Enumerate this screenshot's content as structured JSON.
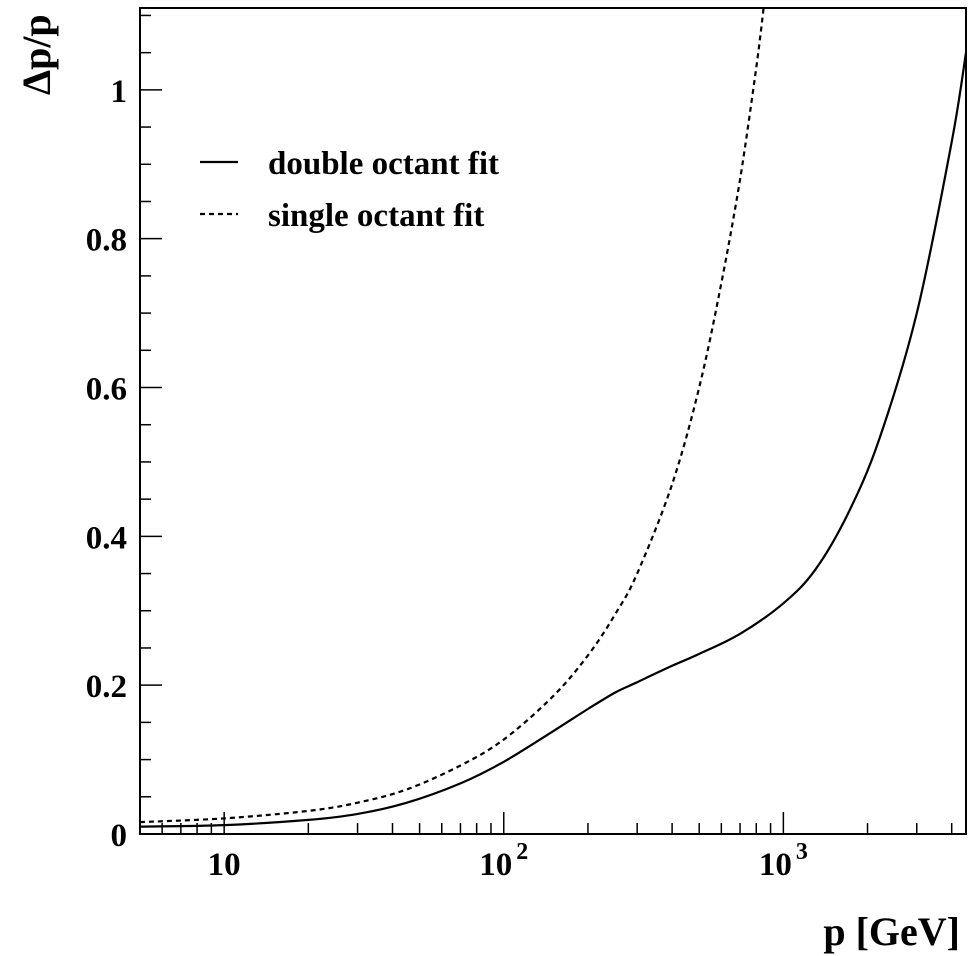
{
  "chart_data": {
    "type": "line",
    "title": "",
    "xlabel": "p [GeV]",
    "ylabel": "Δp/p",
    "x_scale": "log",
    "xlim": [
      5,
      4500
    ],
    "ylim": [
      0,
      1.11
    ],
    "grid": false,
    "legend_position": "top-left",
    "y_ticks": [
      {
        "value": 0,
        "label": "0"
      },
      {
        "value": 0.2,
        "label": "0.2"
      },
      {
        "value": 0.4,
        "label": "0.4"
      },
      {
        "value": 0.6,
        "label": "0.6"
      },
      {
        "value": 0.8,
        "label": "0.8"
      },
      {
        "value": 1,
        "label": "1"
      }
    ],
    "x_ticks": [
      {
        "value": 10,
        "base": "10",
        "exp": ""
      },
      {
        "value": 100,
        "base": "10",
        "exp": "2"
      },
      {
        "value": 1000,
        "base": "10",
        "exp": "3"
      }
    ],
    "series": [
      {
        "name": "double octant fit",
        "style": "solid",
        "x": [
          5,
          10,
          20,
          30,
          45,
          70,
          100,
          150,
          200,
          250,
          300,
          400,
          500,
          700,
          1000,
          1300,
          1700,
          2200,
          3000,
          4000,
          4500
        ],
        "y": [
          0.01,
          0.012,
          0.019,
          0.027,
          0.042,
          0.068,
          0.097,
          0.138,
          0.168,
          0.19,
          0.204,
          0.226,
          0.242,
          0.269,
          0.31,
          0.355,
          0.43,
          0.53,
          0.7,
          0.93,
          1.05
        ]
      },
      {
        "name": "single octant fit",
        "style": "dashed",
        "x": [
          5,
          10,
          20,
          30,
          45,
          70,
          100,
          150,
          200,
          250,
          300,
          400,
          500,
          600,
          700,
          800,
          850
        ],
        "y": [
          0.016,
          0.021,
          0.031,
          0.042,
          0.06,
          0.092,
          0.127,
          0.185,
          0.24,
          0.295,
          0.35,
          0.47,
          0.6,
          0.74,
          0.88,
          1.03,
          1.11
        ]
      }
    ]
  }
}
